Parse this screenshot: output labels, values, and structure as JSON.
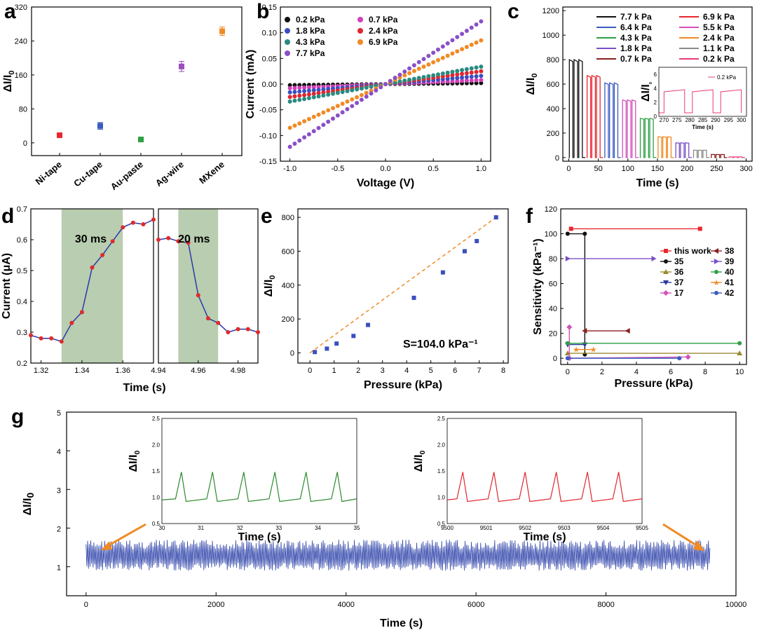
{
  "chart_data": [
    {
      "panel": "a",
      "type": "scatter",
      "categories": [
        "Ni-tape",
        "Cu-tape",
        "Au-paste",
        "Ag-wire",
        "MXene"
      ],
      "values": [
        18,
        40,
        8,
        180,
        263
      ],
      "errors": [
        4,
        8,
        4,
        12,
        10
      ],
      "colors": [
        "#e8262f",
        "#3a5bbf",
        "#2ea043",
        "#9b4fbd",
        "#f08a24"
      ],
      "ylabel": "ΔI/I0",
      "ylim": [
        -30,
        320
      ],
      "yticks": [
        0,
        80,
        160,
        240,
        320
      ]
    },
    {
      "panel": "b",
      "type": "line",
      "xlabel": "Voltage (V)",
      "ylabel": "Current (mA)",
      "xlim": [
        -1.1,
        1.1
      ],
      "ylim": [
        -0.15,
        0.15
      ],
      "xticks": [
        -1.0,
        -0.5,
        0.0,
        0.5,
        1.0
      ],
      "yticks": [
        -0.15,
        -0.1,
        -0.05,
        0.0,
        0.05,
        0.1,
        0.15
      ],
      "series": [
        {
          "name": "0.2 kPa",
          "slope": 0.002,
          "color": "#111111"
        },
        {
          "name": "0.7 kPa",
          "slope": 0.008,
          "color": "#d23fb8"
        },
        {
          "name": "1.8 kPa",
          "slope": 0.016,
          "color": "#3a4fbf"
        },
        {
          "name": "2.4 kPa",
          "slope": 0.025,
          "color": "#e0262f"
        },
        {
          "name": "4.3 kPa",
          "slope": 0.034,
          "color": "#2a8a80"
        },
        {
          "name": "6.9 kPa",
          "slope": 0.085,
          "color": "#f08a24"
        },
        {
          "name": "7.7 kPa",
          "slope": 0.122,
          "color": "#8a4fc8"
        }
      ]
    },
    {
      "panel": "c",
      "type": "line",
      "xlabel": "Time (s)",
      "ylabel": "ΔI/I0",
      "xlim": [
        -10,
        310
      ],
      "ylim": [
        -30,
        1230
      ],
      "xticks": [
        0,
        50,
        100,
        150,
        200,
        250,
        300
      ],
      "yticks": [
        0,
        200,
        400,
        600,
        800,
        1000,
        1200
      ],
      "series": [
        {
          "name": "7.7 k Pa",
          "level": 800,
          "color": "#111111"
        },
        {
          "name": "6.9 k Pa",
          "level": 670,
          "color": "#e8262f"
        },
        {
          "name": "6.4 k Pa",
          "level": 610,
          "color": "#3a5bbf"
        },
        {
          "name": "5.5 k Pa",
          "level": 470,
          "color": "#d450b8"
        },
        {
          "name": "4.3 k Pa",
          "level": 320,
          "color": "#2ea043"
        },
        {
          "name": "2.4 k Pa",
          "level": 170,
          "color": "#f08a24"
        },
        {
          "name": "1.8 k Pa",
          "level": 120,
          "color": "#7a4fc8"
        },
        {
          "name": "1.1 k Pa",
          "level": 60,
          "color": "#8a8a8a"
        },
        {
          "name": "0.7 k Pa",
          "level": 25,
          "color": "#8a1f1f"
        },
        {
          "name": "0.2 k Pa",
          "level": 5,
          "color": "#e83a7a"
        }
      ],
      "inset": {
        "legend": "0.2 kPa",
        "ylabel": "ΔI/I0",
        "xlabel": "Time (s)",
        "xticks": [
          270,
          275,
          280,
          285,
          290,
          295,
          300
        ],
        "yticks": [
          0,
          2,
          4,
          6
        ]
      }
    },
    {
      "panel": "d",
      "type": "line",
      "xlabel": "Time (s)",
      "ylabel": "Current (μA)",
      "ylim": [
        0.2,
        0.7
      ],
      "yticks": [
        0.2,
        0.3,
        0.4,
        0.5,
        0.6,
        0.7
      ],
      "left": {
        "xticks": [
          1.32,
          1.34,
          1.36
        ],
        "xlim": [
          1.315,
          1.375
        ],
        "x": [
          1.315,
          1.32,
          1.325,
          1.33,
          1.335,
          1.34,
          1.345,
          1.35,
          1.355,
          1.36,
          1.365,
          1.37,
          1.375
        ],
        "y": [
          0.29,
          0.28,
          0.28,
          0.27,
          0.33,
          0.365,
          0.51,
          0.55,
          0.595,
          0.64,
          0.655,
          0.65,
          0.665
        ],
        "annotation": "30 ms",
        "shade": [
          1.33,
          1.36
        ]
      },
      "right": {
        "xticks": [
          4.94,
          4.96,
          4.98
        ],
        "xlim": [
          4.94,
          4.99
        ],
        "x": [
          4.94,
          4.945,
          4.95,
          4.955,
          4.96,
          4.965,
          4.97,
          4.975,
          4.98,
          4.985,
          4.99
        ],
        "y": [
          0.6,
          0.605,
          0.595,
          0.59,
          0.42,
          0.345,
          0.33,
          0.3,
          0.31,
          0.31,
          0.3
        ],
        "annotation": "20 ms",
        "shade": [
          4.95,
          4.97
        ]
      }
    },
    {
      "panel": "e",
      "type": "scatter",
      "xlabel": "Pressure (kPa)",
      "ylabel": "ΔI/I0",
      "xlim": [
        -0.5,
        8.2
      ],
      "ylim": [
        -60,
        850
      ],
      "xticks": [
        0,
        1,
        2,
        3,
        4,
        5,
        6,
        7,
        8
      ],
      "yticks": [
        0,
        200,
        400,
        600,
        800
      ],
      "x": [
        0.2,
        0.7,
        1.1,
        1.8,
        2.4,
        4.3,
        5.5,
        6.4,
        6.9,
        7.7
      ],
      "y": [
        5,
        25,
        55,
        100,
        165,
        325,
        475,
        600,
        660,
        800
      ],
      "fit": {
        "x": [
          0,
          7.7
        ],
        "y": [
          0,
          800
        ]
      },
      "annotation": "S=104.0 kPa⁻¹"
    },
    {
      "panel": "f",
      "type": "line",
      "xlabel": "Pressure (kPa)",
      "ylabel": "Sensitivity (kPa⁻¹)",
      "xlim": [
        -0.4,
        10.4
      ],
      "ylim": [
        -5,
        120
      ],
      "xticks": [
        0,
        2,
        4,
        6,
        8,
        10
      ],
      "yticks": [
        0,
        20,
        40,
        60,
        80,
        100,
        120
      ],
      "series": [
        {
          "name": "this work",
          "color": "#e8262f",
          "marker": "square",
          "pts": [
            [
              0.2,
              104
            ],
            [
              7.7,
              104
            ]
          ]
        },
        {
          "name": "35",
          "color": "#111111",
          "marker": "circle",
          "pts": [
            [
              0,
              100
            ],
            [
              1,
              100
            ],
            [
              1,
              3
            ]
          ]
        },
        {
          "name": "36",
          "color": "#9a8a30",
          "marker": "triangle-up",
          "pts": [
            [
              0,
              4
            ],
            [
              10,
              4
            ]
          ]
        },
        {
          "name": "37",
          "color": "#2a3a9a",
          "marker": "triangle-down",
          "pts": [
            [
              0,
              11
            ],
            [
              1,
              11
            ]
          ]
        },
        {
          "name": "17",
          "color": "#d450b8",
          "marker": "diamond",
          "pts": [
            [
              0.1,
              25
            ],
            [
              0.1,
              0
            ],
            [
              7,
              1
            ]
          ]
        },
        {
          "name": "38",
          "color": "#8a1f1f",
          "marker": "triangle-left",
          "pts": [
            [
              1,
              22
            ],
            [
              3.5,
              22
            ]
          ]
        },
        {
          "name": "39",
          "color": "#7a4fc8",
          "marker": "triangle-right",
          "pts": [
            [
              0,
              80
            ],
            [
              5,
              80
            ]
          ]
        },
        {
          "name": "40",
          "color": "#2ea043",
          "marker": "circle",
          "pts": [
            [
              0,
              12
            ],
            [
              10,
              12
            ]
          ]
        },
        {
          "name": "41",
          "color": "#f08a24",
          "marker": "star",
          "pts": [
            [
              0.5,
              7
            ],
            [
              1.5,
              7
            ]
          ]
        },
        {
          "name": "42",
          "color": "#3a5bbf",
          "marker": "circle",
          "pts": [
            [
              0,
              0
            ],
            [
              6.5,
              0
            ]
          ]
        }
      ]
    },
    {
      "panel": "g",
      "type": "line",
      "xlabel": "Time (s)",
      "ylabel": "ΔI/I0",
      "xlim": [
        -300,
        10000
      ],
      "ylim": [
        0.25,
        5
      ],
      "xticks": [
        0,
        2000,
        4000,
        6000,
        8000,
        10000
      ],
      "yticks": [
        1,
        2,
        3,
        4,
        5
      ],
      "band": {
        "xmin": 0,
        "xmax": 9600,
        "low": 1.0,
        "high": 1.7
      },
      "inset1": {
        "xlabel": "Time (s)",
        "ylabel": "ΔI/I0",
        "xticks": [
          30,
          31,
          32,
          33,
          34,
          35
        ],
        "yticks": [
          0.5,
          1.0,
          1.5,
          2.0,
          2.5
        ],
        "color": "#2e8a2e",
        "peaks": [
          30.5,
          31.3,
          32.1,
          32.9,
          33.7,
          34.5
        ]
      },
      "inset2": {
        "xlabel": "Time (s)",
        "ylabel": "ΔI/I0",
        "xticks": [
          9500,
          9501,
          9502,
          9503,
          9504,
          9505
        ],
        "yticks": [
          0.5,
          1.0,
          1.5,
          2.0,
          2.5
        ],
        "color": "#e0262f",
        "peaks": [
          9500.4,
          9501.2,
          9502.0,
          9502.8,
          9503.6,
          9504.4
        ]
      }
    }
  ],
  "panel_labels": {
    "a": "a",
    "b": "b",
    "c": "c",
    "d": "d",
    "e": "e",
    "f": "f",
    "g": "g"
  }
}
